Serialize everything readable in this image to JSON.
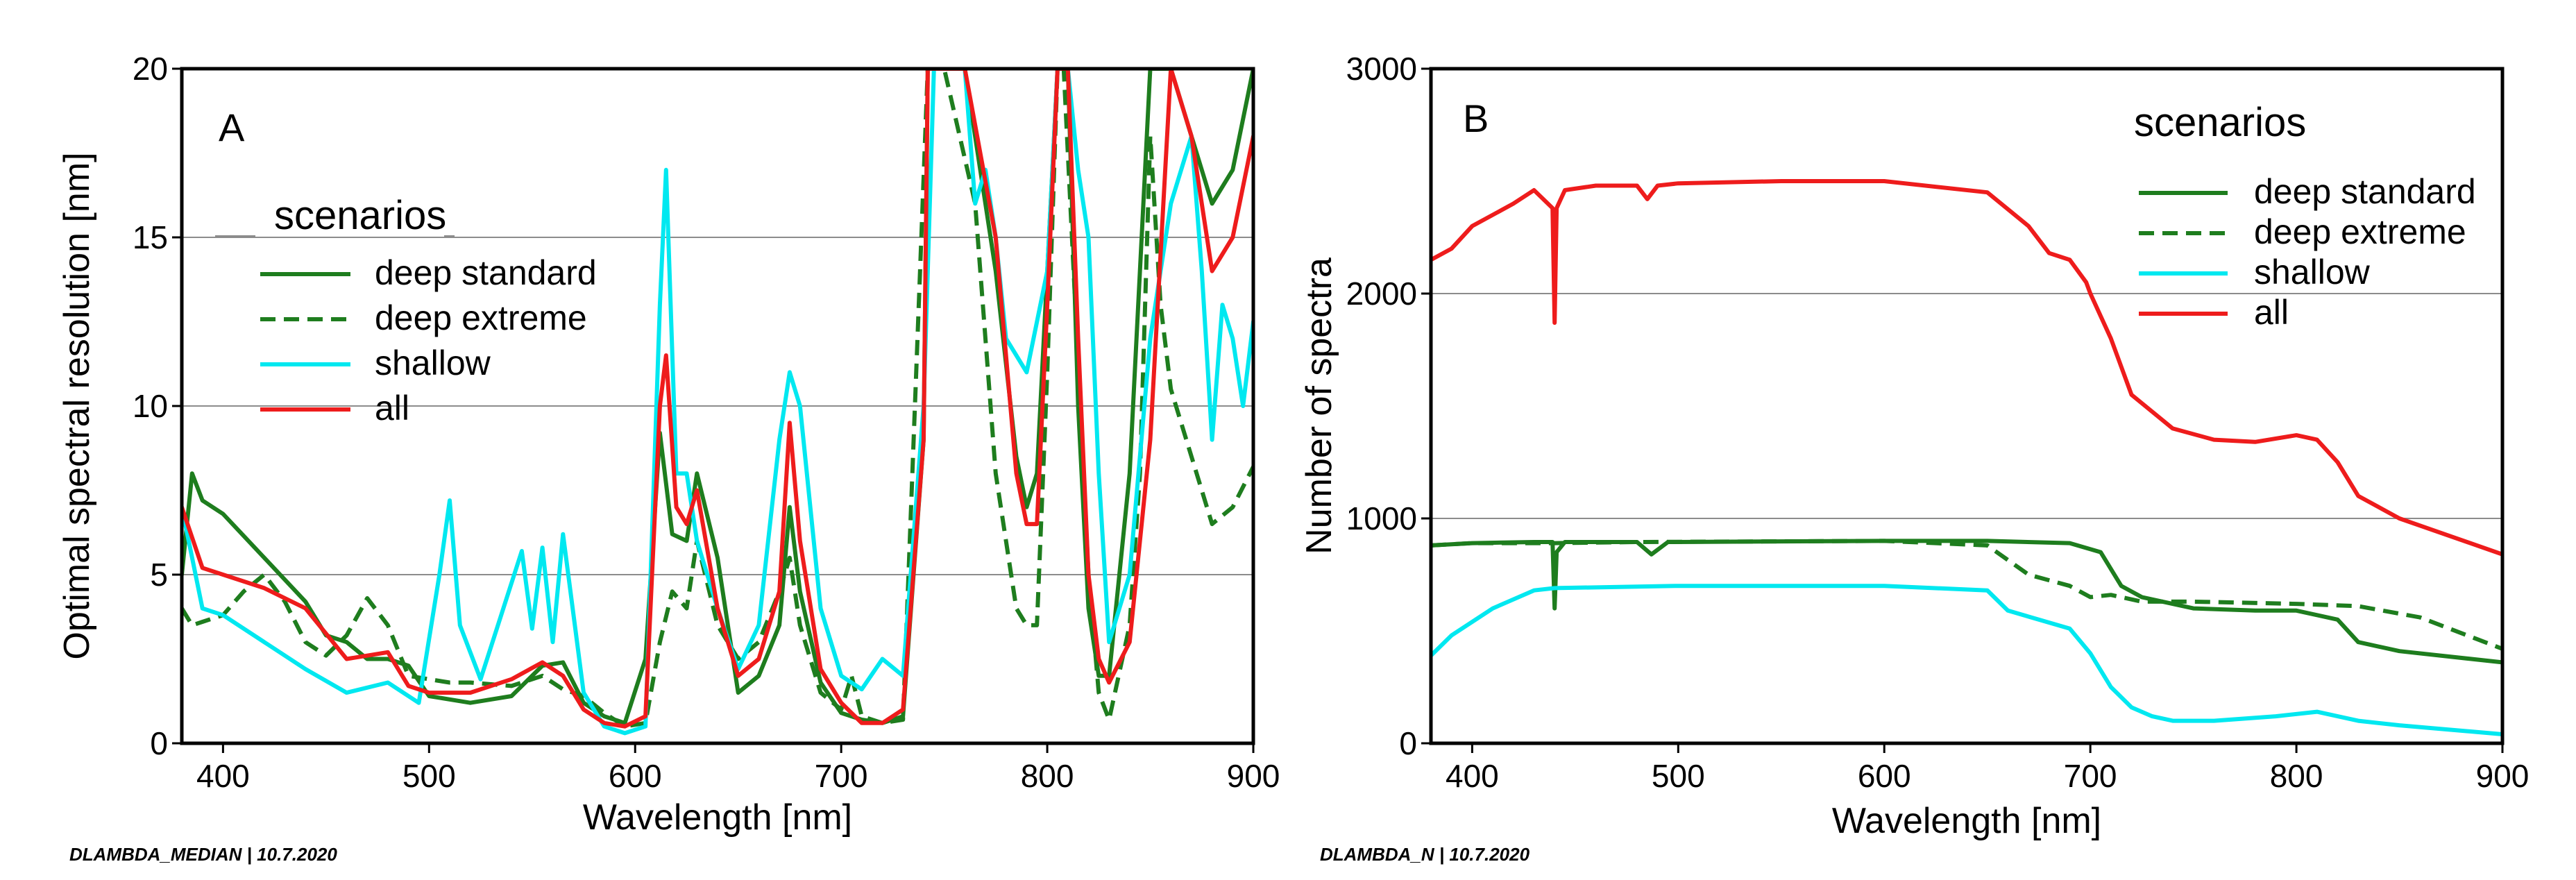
{
  "colors": {
    "deep_standard": "#1e7d1e",
    "deep_extreme": "#1e7d1e",
    "shallow": "#00e8f0",
    "all": "#ee1c1c",
    "gridline": "#8c8c8c"
  },
  "chart_data": [
    {
      "type": "line",
      "panel": "A",
      "xlabel": "Wavelength [nm]",
      "ylabel": "Optimal spectral resolution [nm]",
      "xlim": [
        380,
        900
      ],
      "ylim": [
        0,
        20
      ],
      "xticks": [
        400,
        500,
        600,
        700,
        800,
        900
      ],
      "yticks": [
        0,
        5,
        10,
        15,
        20
      ],
      "grid_y": [
        5,
        10,
        15
      ],
      "footer": "DLAMBDA_MEDIAN | 10.7.2020",
      "legend": {
        "title": "scenarios",
        "position": "top-left",
        "entries": [
          "deep standard",
          "deep extreme",
          "shallow",
          "all"
        ]
      },
      "series": [
        {
          "name": "deep standard",
          "style": "solid",
          "x": [
            380,
            385,
            390,
            400,
            420,
            440,
            450,
            460,
            470,
            480,
            490,
            500,
            520,
            540,
            555,
            565,
            575,
            585,
            595,
            605,
            612,
            618,
            625,
            630,
            640,
            650,
            660,
            670,
            675,
            680,
            690,
            700,
            710,
            720,
            730,
            740,
            742,
            760,
            775,
            785,
            790,
            795,
            800,
            805,
            810,
            815,
            820,
            825,
            830,
            840,
            850,
            860,
            870,
            880,
            890,
            900
          ],
          "y": [
            5,
            8,
            7.2,
            6.8,
            5.5,
            4.2,
            3.2,
            3,
            2.5,
            2.5,
            2.3,
            1.4,
            1.2,
            1.4,
            2.3,
            2.4,
            1.2,
            0.8,
            0.6,
            2.5,
            9.2,
            6.2,
            6,
            8,
            5.5,
            1.5,
            2.0,
            3.5,
            7.0,
            4.5,
            1.8,
            0.9,
            0.7,
            0.6,
            0.8,
            9,
            20,
            20,
            14,
            8.5,
            7,
            8,
            14,
            20,
            20,
            10,
            4,
            2,
            2,
            8,
            20,
            20,
            18,
            16,
            17,
            20
          ]
        },
        {
          "name": "deep extreme",
          "style": "dashed",
          "x": [
            380,
            385,
            390,
            400,
            410,
            420,
            430,
            440,
            450,
            460,
            470,
            480,
            490,
            500,
            510,
            520,
            540,
            555,
            565,
            575,
            585,
            595,
            605,
            612,
            618,
            625,
            630,
            640,
            650,
            660,
            670,
            675,
            680,
            690,
            700,
            705,
            710,
            720,
            730,
            742,
            750,
            765,
            775,
            785,
            790,
            795,
            800,
            805,
            808,
            812,
            820,
            825,
            830,
            840,
            845,
            850,
            855,
            860,
            870,
            880,
            890,
            900
          ],
          "y": [
            4,
            3.5,
            3.6,
            3.8,
            4.5,
            5,
            4.2,
            3,
            2.6,
            3.2,
            4.3,
            3.5,
            2.0,
            1.9,
            1.8,
            1.8,
            1.7,
            2.0,
            1.6,
            1.4,
            0.9,
            0.5,
            0.6,
            3.0,
            4.5,
            4.0,
            6.0,
            3.5,
            2.5,
            3.0,
            4.5,
            5.5,
            3.5,
            1.5,
            1.0,
            2.0,
            0.8,
            0.6,
            0.7,
            20,
            20,
            16,
            8,
            4,
            3.5,
            3.5,
            11,
            20,
            20,
            15,
            5,
            1.5,
            0.7,
            3.5,
            8,
            18,
            13,
            10.5,
            8.5,
            6.5,
            7,
            8.2
          ]
        },
        {
          "name": "shallow",
          "style": "solid",
          "x": [
            380,
            390,
            400,
            420,
            440,
            460,
            480,
            495,
            505,
            510,
            515,
            525,
            545,
            550,
            555,
            560,
            565,
            575,
            585,
            595,
            605,
            612,
            615,
            620,
            625,
            630,
            640,
            650,
            660,
            670,
            675,
            680,
            690,
            700,
            710,
            720,
            730,
            740,
            745,
            760,
            765,
            770,
            775,
            780,
            790,
            800,
            805,
            810,
            815,
            820,
            825,
            830,
            840,
            850,
            860,
            870,
            875,
            880,
            885,
            890,
            895,
            900
          ],
          "y": [
            7,
            4,
            3.8,
            3,
            2.2,
            1.5,
            1.8,
            1.2,
            5,
            7.2,
            3.5,
            1.9,
            5.7,
            3.4,
            5.8,
            3,
            6.2,
            1.5,
            0.5,
            0.3,
            0.5,
            13,
            17,
            8,
            8,
            6,
            4,
            2.2,
            3.5,
            9.0,
            11,
            10,
            4,
            2,
            1.6,
            2.5,
            2.0,
            10,
            20,
            20,
            16,
            17,
            15,
            12,
            11,
            14,
            20,
            20,
            17,
            15,
            8,
            3,
            5,
            12,
            16,
            18,
            14,
            9,
            13,
            12,
            10,
            12.5
          ]
        },
        {
          "name": "all",
          "style": "solid",
          "x": [
            380,
            390,
            400,
            420,
            440,
            460,
            480,
            490,
            500,
            520,
            540,
            555,
            565,
            575,
            585,
            595,
            605,
            612,
            615,
            620,
            625,
            630,
            640,
            650,
            660,
            670,
            675,
            680,
            690,
            700,
            710,
            720,
            730,
            740,
            742,
            760,
            775,
            785,
            790,
            795,
            800,
            805,
            810,
            815,
            820,
            825,
            830,
            840,
            850,
            860,
            870,
            880,
            890,
            900
          ],
          "y": [
            7,
            5.2,
            5,
            4.6,
            4,
            2.5,
            2.7,
            1.7,
            1.5,
            1.5,
            1.9,
            2.4,
            2.0,
            1.0,
            0.6,
            0.5,
            0.8,
            10,
            11.5,
            7,
            6.5,
            7.5,
            4,
            2.0,
            2.5,
            4.5,
            9.5,
            6.0,
            2.2,
            1.2,
            0.6,
            0.6,
            1.0,
            9,
            20,
            20,
            15,
            8,
            6.5,
            6.5,
            13,
            20,
            20,
            12,
            5,
            2.5,
            1.8,
            3,
            9,
            20,
            18,
            14,
            15,
            18
          ]
        }
      ]
    },
    {
      "type": "line",
      "panel": "B",
      "xlabel": "Wavelength [nm]",
      "ylabel": "Number of spectra",
      "xlim": [
        380,
        900
      ],
      "ylim": [
        0,
        3000
      ],
      "xticks": [
        400,
        500,
        600,
        700,
        800,
        900
      ],
      "yticks": [
        0,
        1000,
        2000,
        3000
      ],
      "grid_y": [
        1000,
        2000
      ],
      "footer": "DLAMBDA_N | 10.7.2020",
      "legend": {
        "title": "scenarios",
        "position": "top-right",
        "entries": [
          "deep standard",
          "deep extreme",
          "shallow",
          "all"
        ]
      },
      "series": [
        {
          "name": "deep standard",
          "style": "solid",
          "x": [
            380,
            400,
            430,
            439,
            440,
            441,
            445,
            480,
            487,
            495,
            600,
            650,
            690,
            705,
            715,
            725,
            750,
            780,
            800,
            820,
            830,
            850,
            900
          ],
          "y": [
            880,
            890,
            895,
            895,
            600,
            850,
            895,
            895,
            840,
            895,
            900,
            900,
            890,
            850,
            700,
            650,
            600,
            590,
            590,
            550,
            450,
            410,
            360
          ]
        },
        {
          "name": "deep extreme",
          "style": "dashed",
          "x": [
            380,
            400,
            430,
            440,
            480,
            600,
            650,
            670,
            690,
            700,
            710,
            725,
            750,
            800,
            830,
            860,
            900
          ],
          "y": [
            880,
            890,
            890,
            890,
            895,
            900,
            880,
            750,
            700,
            650,
            660,
            630,
            630,
            620,
            610,
            560,
            420
          ]
        },
        {
          "name": "shallow",
          "style": "solid",
          "x": [
            380,
            390,
            410,
            430,
            440,
            500,
            600,
            650,
            660,
            690,
            700,
            710,
            720,
            730,
            740,
            760,
            790,
            810,
            830,
            850,
            900
          ],
          "y": [
            390,
            480,
            600,
            680,
            690,
            700,
            700,
            680,
            590,
            510,
            400,
            250,
            160,
            120,
            100,
            100,
            120,
            140,
            100,
            80,
            40
          ]
        },
        {
          "name": "all",
          "style": "solid",
          "x": [
            380,
            390,
            400,
            420,
            430,
            439,
            440,
            441,
            445,
            460,
            480,
            485,
            490,
            500,
            550,
            600,
            650,
            670,
            680,
            690,
            698,
            700,
            710,
            720,
            740,
            760,
            780,
            800,
            810,
            820,
            830,
            850,
            900
          ],
          "y": [
            2150,
            2200,
            2300,
            2400,
            2460,
            2380,
            1870,
            2380,
            2460,
            2480,
            2480,
            2420,
            2480,
            2490,
            2500,
            2500,
            2450,
            2300,
            2180,
            2150,
            2050,
            2000,
            1800,
            1550,
            1400,
            1350,
            1340,
            1370,
            1350,
            1250,
            1100,
            1000,
            840
          ]
        }
      ]
    }
  ]
}
